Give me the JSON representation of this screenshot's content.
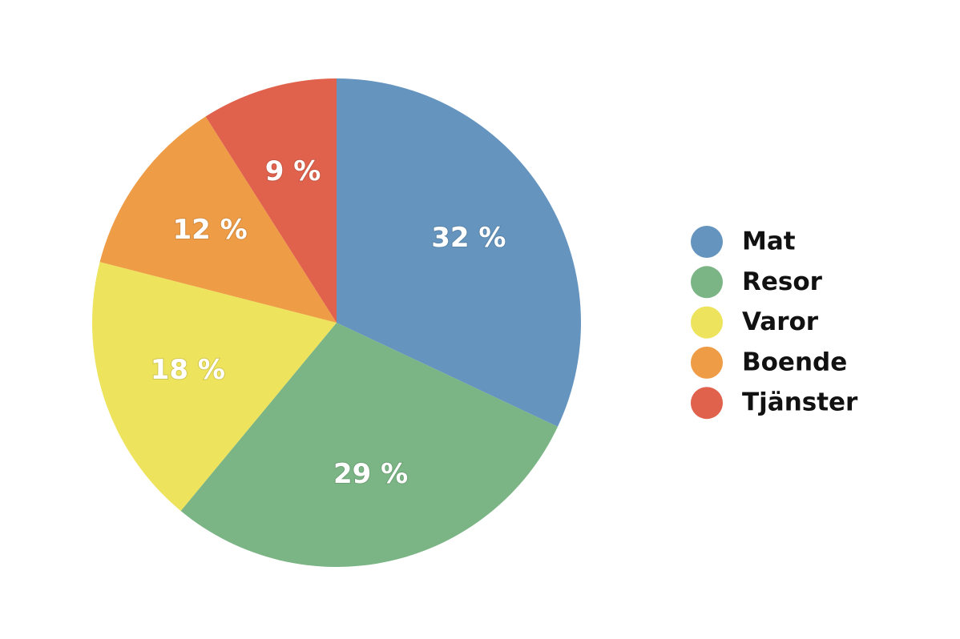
{
  "chart_data": {
    "type": "pie",
    "categories": [
      "Mat",
      "Resor",
      "Varor",
      "Boende",
      "Tjänster"
    ],
    "values": [
      32,
      29,
      18,
      12,
      9
    ],
    "value_labels": [
      "32 %",
      "29 %",
      "18 %",
      "12 %",
      "9 %"
    ],
    "colors": [
      "#6594be",
      "#7bb585",
      "#ede35c",
      "#ef9c46",
      "#e0624d"
    ],
    "legend": "right"
  }
}
